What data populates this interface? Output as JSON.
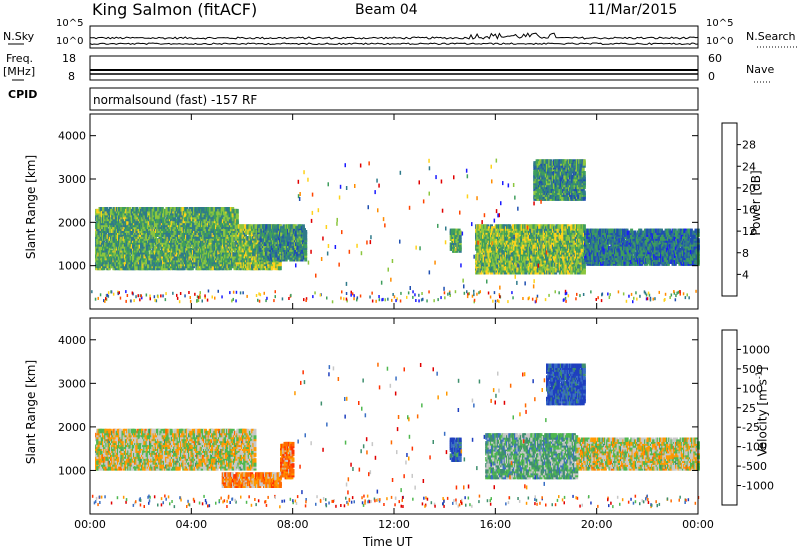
{
  "header": {
    "station": "King Salmon (fitACF)",
    "beam": "Beam 04",
    "date": "11/Mar/2015"
  },
  "strip": {
    "nsky_label": "N.Sky",
    "nsearch_label": "N.Search",
    "nsky_ticks": [
      "10^5",
      "10^0"
    ],
    "nsearch_ticks": [
      "10^5",
      "10^0"
    ],
    "freq_label_1": "Freq.",
    "freq_label_2": "[MHz]",
    "freq_ticks": [
      "18",
      "8"
    ],
    "nave_label": "Nave",
    "nave_ticks": [
      "60",
      "0"
    ],
    "cpid_label": "CPID",
    "cpid_text": "normalsound (fast) -157 RF"
  },
  "axes": {
    "ylabel": "Slant Range [km]",
    "xlabel": "Time UT",
    "y_ticks": [
      "1000",
      "2000",
      "3000",
      "4000"
    ],
    "x_ticks": [
      "00:00",
      "04:00",
      "08:00",
      "12:00",
      "16:00",
      "20:00",
      "00:00"
    ]
  },
  "colorbars": {
    "power": {
      "label": "Power [dB]",
      "ticks": [
        "4",
        "8",
        "12",
        "16",
        "20",
        "24",
        "28"
      ],
      "colors": [
        "#1a1aff",
        "#1f4fb0",
        "#2f7a8a",
        "#3f9e5c",
        "#8cc63f",
        "#ffd21a",
        "#ff8c00",
        "#ff4500",
        "#e00000"
      ]
    },
    "velocity": {
      "label": "Velocity  [m s",
      "label_sup": "-1",
      "label_end": "]",
      "ticks": [
        "1000",
        "500",
        "100",
        "25",
        "-25",
        "-100",
        "-500",
        "-1000"
      ],
      "colors": [
        "#1f3fbf",
        "#3a6fc4",
        "#3f8f6e",
        "#4fb84f",
        "#c8c8c8",
        "#ff9900",
        "#ff6a00",
        "#ff3300",
        "#e00000"
      ]
    }
  },
  "chart_data": {
    "type": "heatmap",
    "title": "King Salmon (fitACF)  Beam 04  11/Mar/2015",
    "xlabel": "Time UT",
    "ylabel": "Slant Range [km]",
    "xlim": [
      0,
      24
    ],
    "ylim": [
      0,
      4500
    ],
    "panels": [
      {
        "name": "Power [dB]",
        "clim": [
          0,
          30
        ],
        "regions": [
          {
            "t": [
              0.2,
              5.8
            ],
            "r": [
              1000,
              2400
            ],
            "v": 12
          },
          {
            "t": [
              5.8,
              7.5
            ],
            "r": [
              1000,
              2000
            ],
            "v": 14
          },
          {
            "t": [
              6.6,
              8.5
            ],
            "r": [
              1200,
              2000
            ],
            "v": 10
          },
          {
            "t": [
              14.2,
              14.6
            ],
            "r": [
              1400,
              1900
            ],
            "v": 12
          },
          {
            "t": [
              15.2,
              19.5
            ],
            "r": [
              900,
              2000
            ],
            "v": 14
          },
          {
            "t": [
              19.5,
              24.0
            ],
            "r": [
              1100,
              1900
            ],
            "v": 8
          },
          {
            "t": [
              17.5,
              19.5
            ],
            "r": [
              2600,
              3500
            ],
            "v": 10
          }
        ]
      },
      {
        "name": "Velocity [m s-1]",
        "clim": [
          -1000,
          1000
        ],
        "regions": [
          {
            "t": [
              0.2,
              6.5
            ],
            "r": [
              1100,
              2000
            ],
            "v": 0
          },
          {
            "t": [
              5.2,
              7.5
            ],
            "r": [
              700,
              1000
            ],
            "v": -300
          },
          {
            "t": [
              7.5,
              8.0
            ],
            "r": [
              900,
              1700
            ],
            "v": -400
          },
          {
            "t": [
              14.2,
              14.6
            ],
            "r": [
              1300,
              1800
            ],
            "v": 800
          },
          {
            "t": [
              15.6,
              19.2
            ],
            "r": [
              900,
              1900
            ],
            "v": 300
          },
          {
            "t": [
              19.2,
              24.0
            ],
            "r": [
              1100,
              1800
            ],
            "v": 0
          },
          {
            "t": [
              18.0,
              19.5
            ],
            "r": [
              2600,
              3500
            ],
            "v": 800
          }
        ]
      }
    ]
  }
}
